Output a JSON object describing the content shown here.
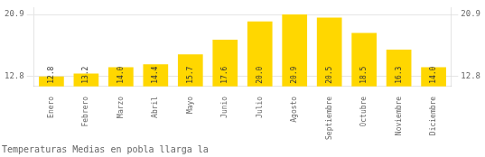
{
  "chart_data": {
    "type": "bar",
    "title": "Temperaturas Medias en pobla llarga la",
    "categories": [
      "Enero",
      "Febrero",
      "Marzo",
      "Abril",
      "Mayo",
      "Junio",
      "Julio",
      "Agosto",
      "Septiembre",
      "Octubre",
      "Noviembre",
      "Diciembre"
    ],
    "values": [
      12.8,
      13.2,
      14.0,
      14.4,
      15.7,
      17.6,
      20.0,
      20.9,
      20.5,
      18.5,
      16.3,
      14.0
    ],
    "value_labels": [
      "12.8",
      "13.2",
      "14.0",
      "14.4",
      "15.7",
      "17.6",
      "20.0",
      "20.9",
      "20.5",
      "18.5",
      "16.3",
      "14.0"
    ],
    "color": "#FFD700",
    "ylim": [
      11.5,
      21.8
    ],
    "yticks": [
      12.8,
      20.9
    ],
    "grid": true,
    "data_labels": true
  }
}
